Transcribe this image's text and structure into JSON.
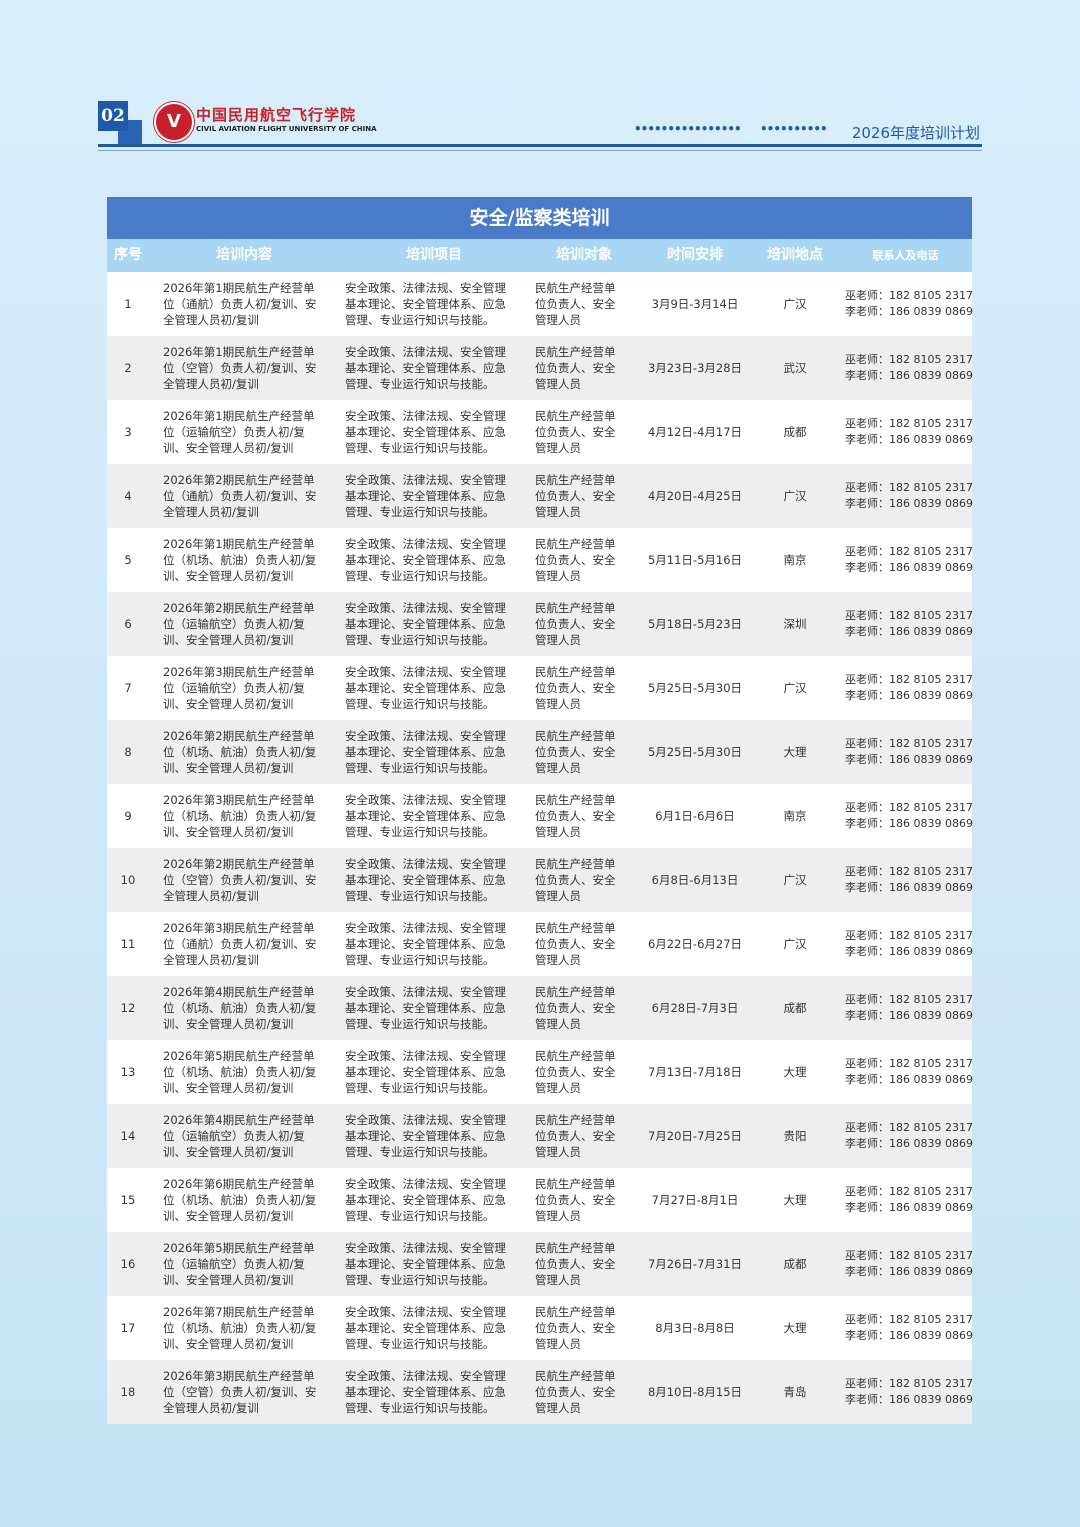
{
  "header": {
    "page_number": "02",
    "logo_cn": "中国民用航空飞行学院",
    "logo_en": "CIVIL AVIATION FLIGHT UNIVERSITY OF CHINA",
    "dots_1": "••••••••••••••••",
    "dots_2": "••••••••••",
    "plan_title": "2026年度培训计划"
  },
  "table": {
    "title": "安全/监察类培训",
    "columns": [
      "序号",
      "培训内容",
      "培训项目",
      "培训对象",
      "时间安排",
      "培训地点",
      "联系人及电话"
    ],
    "rows": [
      {
        "no": "1",
        "content": "2026年第1期民航生产经营单位（通航）负责人初/复训、安全管理人员初/复训",
        "project": "安全政策、法律法规、安全管理基本理论、安全管理体系、应急管理、专业运行知识与技能。",
        "target": "民航生产经营单位负责人、安全管理人员",
        "time": "3月9日-3月14日",
        "place": "广汉",
        "contact1": "巫老师：182 8105 2317",
        "contact2": "李老师：186 0839 0869"
      },
      {
        "no": "2",
        "content": "2026年第1期民航生产经营单位（空管）负责人初/复训、安全管理人员初/复训",
        "project": "安全政策、法律法规、安全管理基本理论、安全管理体系、应急管理、专业运行知识与技能。",
        "target": "民航生产经营单位负责人、安全管理人员",
        "time": "3月23日-3月28日",
        "place": "武汉",
        "contact1": "巫老师：182 8105 2317",
        "contact2": "李老师：186 0839 0869"
      },
      {
        "no": "3",
        "content": "2026年第1期民航生产经营单位（运输航空）负责人初/复训、安全管理人员初/复训",
        "project": "安全政策、法律法规、安全管理基本理论、安全管理体系、应急管理、专业运行知识与技能。",
        "target": "民航生产经营单位负责人、安全管理人员",
        "time": "4月12日-4月17日",
        "place": "成都",
        "contact1": "巫老师：182 8105 2317",
        "contact2": "李老师：186 0839 0869"
      },
      {
        "no": "4",
        "content": "2026年第2期民航生产经营单位（通航）负责人初/复训、安全管理人员初/复训",
        "project": "安全政策、法律法规、安全管理基本理论、安全管理体系、应急管理、专业运行知识与技能。",
        "target": "民航生产经营单位负责人、安全管理人员",
        "time": "4月20日-4月25日",
        "place": "广汉",
        "contact1": "巫老师：182 8105 2317",
        "contact2": "李老师：186 0839 0869"
      },
      {
        "no": "5",
        "content": "2026年第1期民航生产经营单位（机场、航油）负责人初/复训、安全管理人员初/复训",
        "project": "安全政策、法律法规、安全管理基本理论、安全管理体系、应急管理、专业运行知识与技能。",
        "target": "民航生产经营单位负责人、安全管理人员",
        "time": "5月11日-5月16日",
        "place": "南京",
        "contact1": "巫老师：182 8105 2317",
        "contact2": "李老师：186 0839 0869"
      },
      {
        "no": "6",
        "content": "2026年第2期民航生产经营单位（运输航空）负责人初/复训、安全管理人员初/复训",
        "project": "安全政策、法律法规、安全管理基本理论、安全管理体系、应急管理、专业运行知识与技能。",
        "target": "民航生产经营单位负责人、安全管理人员",
        "time": "5月18日-5月23日",
        "place": "深圳",
        "contact1": "巫老师：182 8105 2317",
        "contact2": "李老师：186 0839 0869"
      },
      {
        "no": "7",
        "content": "2026年第3期民航生产经营单位（运输航空）负责人初/复训、安全管理人员初/复训",
        "project": "安全政策、法律法规、安全管理基本理论、安全管理体系、应急管理、专业运行知识与技能。",
        "target": "民航生产经营单位负责人、安全管理人员",
        "time": "5月25日-5月30日",
        "place": "广汉",
        "contact1": "巫老师：182 8105 2317",
        "contact2": "李老师：186 0839 0869"
      },
      {
        "no": "8",
        "content": "2026年第2期民航生产经营单位（机场、航油）负责人初/复训、安全管理人员初/复训",
        "project": "安全政策、法律法规、安全管理基本理论、安全管理体系、应急管理、专业运行知识与技能。",
        "target": "民航生产经营单位负责人、安全管理人员",
        "time": "5月25日-5月30日",
        "place": "大理",
        "contact1": "巫老师：182 8105 2317",
        "contact2": "李老师：186 0839 0869"
      },
      {
        "no": "9",
        "content": "2026年第3期民航生产经营单位（机场、航油）负责人初/复训、安全管理人员初/复训",
        "project": "安全政策、法律法规、安全管理基本理论、安全管理体系、应急管理、专业运行知识与技能。",
        "target": "民航生产经营单位负责人、安全管理人员",
        "time": "6月1日-6月6日",
        "place": "南京",
        "contact1": "巫老师：182 8105 2317",
        "contact2": "李老师：186 0839 0869"
      },
      {
        "no": "10",
        "content": "2026年第2期民航生产经营单位（空管）负责人初/复训、安全管理人员初/复训",
        "project": "安全政策、法律法规、安全管理基本理论、安全管理体系、应急管理、专业运行知识与技能。",
        "target": "民航生产经营单位负责人、安全管理人员",
        "time": "6月8日-6月13日",
        "place": "广汉",
        "contact1": "巫老师：182 8105 2317",
        "contact2": "李老师：186 0839 0869"
      },
      {
        "no": "11",
        "content": "2026年第3期民航生产经营单位（通航）负责人初/复训、安全管理人员初/复训",
        "project": "安全政策、法律法规、安全管理基本理论、安全管理体系、应急管理、专业运行知识与技能。",
        "target": "民航生产经营单位负责人、安全管理人员",
        "time": "6月22日-6月27日",
        "place": "广汉",
        "contact1": "巫老师：182 8105 2317",
        "contact2": "李老师：186 0839 0869"
      },
      {
        "no": "12",
        "content": "2026年第4期民航生产经营单位（机场、航油）负责人初/复训、安全管理人员初/复训",
        "project": "安全政策、法律法规、安全管理基本理论、安全管理体系、应急管理、专业运行知识与技能。",
        "target": "民航生产经营单位负责人、安全管理人员",
        "time": "6月28日-7月3日",
        "place": "成都",
        "contact1": "巫老师：182 8105 2317",
        "contact2": "李老师：186 0839 0869"
      },
      {
        "no": "13",
        "content": "2026年第5期民航生产经营单位（机场、航油）负责人初/复训、安全管理人员初/复训",
        "project": "安全政策、法律法规、安全管理基本理论、安全管理体系、应急管理、专业运行知识与技能。",
        "target": "民航生产经营单位负责人、安全管理人员",
        "time": "7月13日-7月18日",
        "place": "大理",
        "contact1": "巫老师：182 8105 2317",
        "contact2": "李老师：186 0839 0869"
      },
      {
        "no": "14",
        "content": "2026年第4期民航生产经营单位（运输航空）负责人初/复训、安全管理人员初/复训",
        "project": "安全政策、法律法规、安全管理基本理论、安全管理体系、应急管理、专业运行知识与技能。",
        "target": "民航生产经营单位负责人、安全管理人员",
        "time": "7月20日-7月25日",
        "place": "贵阳",
        "contact1": "巫老师：182 8105 2317",
        "contact2": "李老师：186 0839 0869"
      },
      {
        "no": "15",
        "content": "2026年第6期民航生产经营单位（机场、航油）负责人初/复训、安全管理人员初/复训",
        "project": "安全政策、法律法规、安全管理基本理论、安全管理体系、应急管理、专业运行知识与技能。",
        "target": "民航生产经营单位负责人、安全管理人员",
        "time": "7月27日-8月1日",
        "place": "大理",
        "contact1": "巫老师：182 8105 2317",
        "contact2": "李老师：186 0839 0869"
      },
      {
        "no": "16",
        "content": "2026年第5期民航生产经营单位（运输航空）负责人初/复训、安全管理人员初/复训",
        "project": "安全政策、法律法规、安全管理基本理论、安全管理体系、应急管理、专业运行知识与技能。",
        "target": "民航生产经营单位负责人、安全管理人员",
        "time": "7月26日-7月31日",
        "place": "成都",
        "contact1": "巫老师：182 8105 2317",
        "contact2": "李老师：186 0839 0869"
      },
      {
        "no": "17",
        "content": "2026年第7期民航生产经营单位（机场、航油）负责人初/复训、安全管理人员初/复训",
        "project": "安全政策、法律法规、安全管理基本理论、安全管理体系、应急管理、专业运行知识与技能。",
        "target": "民航生产经营单位负责人、安全管理人员",
        "time": "8月3日-8月8日",
        "place": "大理",
        "contact1": "巫老师：182 8105 2317",
        "contact2": "李老师：186 0839 0869"
      },
      {
        "no": "18",
        "content": "2026年第3期民航生产经营单位（空管）负责人初/复训、安全管理人员初/复训",
        "project": "安全政策、法律法规、安全管理基本理论、安全管理体系、应急管理、专业运行知识与技能。",
        "target": "民航生产经营单位负责人、安全管理人员",
        "time": "8月10日-8月15日",
        "place": "青岛",
        "contact1": "巫老师：182 8105 2317",
        "contact2": "李老师：186 0839 0869"
      }
    ]
  },
  "colors": {
    "brand_blue": "#1f5aa8",
    "title_bar": "#4a7bc8",
    "header_row": "#a9d6f2",
    "logo_red": "#c8202a"
  }
}
